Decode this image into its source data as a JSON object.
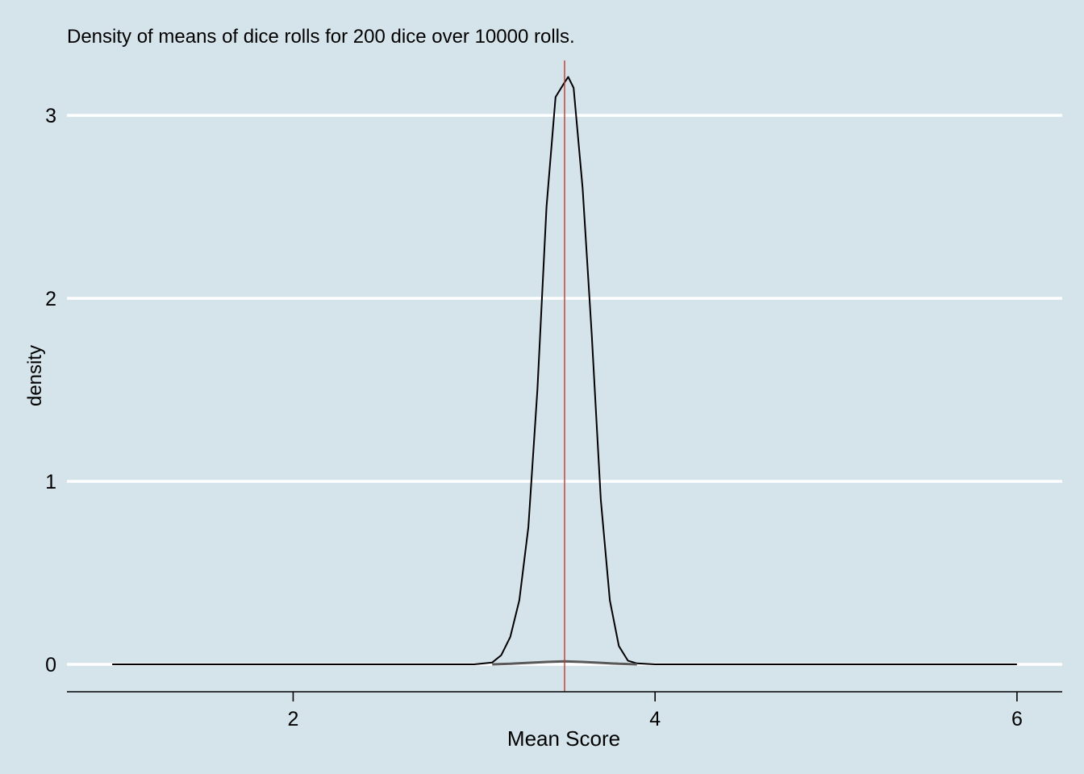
{
  "chart_data": {
    "type": "line",
    "title": "Density of means of dice rolls for 200 dice over 10000 rolls.",
    "xlabel": "Mean Score",
    "ylabel": "density",
    "xlim": [
      0.75,
      6.25
    ],
    "ylim": [
      -0.15,
      3.3
    ],
    "x_ticks": [
      2,
      4,
      6
    ],
    "y_ticks": [
      0,
      1,
      2,
      3
    ],
    "grid": "horizontal major lines (white)",
    "reference_line": {
      "x": 3.5,
      "color": "#c0392b"
    },
    "series": [
      {
        "color": "#000000",
        "x": [
          1.0,
          2.0,
          3.0,
          3.1,
          3.15,
          3.2,
          3.25,
          3.3,
          3.35,
          3.4,
          3.45,
          3.5,
          3.52,
          3.55,
          3.6,
          3.65,
          3.7,
          3.75,
          3.8,
          3.85,
          3.9,
          4.0,
          5.0,
          6.0
        ],
        "y": [
          0.0,
          0.0,
          0.0,
          0.01,
          0.05,
          0.15,
          0.35,
          0.75,
          1.5,
          2.5,
          3.1,
          3.18,
          3.21,
          3.15,
          2.6,
          1.8,
          0.9,
          0.35,
          0.1,
          0.02,
          0.005,
          0.0,
          0.0,
          0.0
        ]
      },
      {
        "color": "#595959",
        "x": [
          3.1,
          3.2,
          3.3,
          3.4,
          3.5,
          3.6,
          3.7,
          3.8,
          3.9
        ],
        "y": [
          0.0,
          0.003,
          0.008,
          0.013,
          0.016,
          0.013,
          0.008,
          0.003,
          0.0
        ]
      }
    ]
  }
}
